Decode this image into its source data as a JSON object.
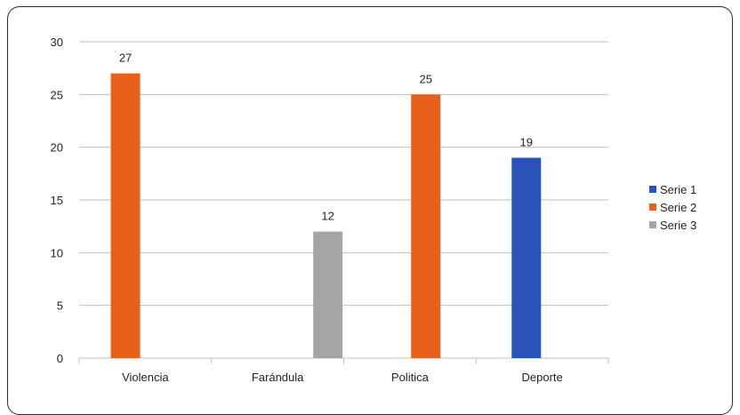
{
  "chart_data": {
    "type": "bar",
    "categories": [
      "Violencia",
      "Farándula",
      "Politica",
      "Deporte"
    ],
    "series": [
      {
        "name": "Serie 1",
        "color": "#2a52b8",
        "values": [
          null,
          null,
          null,
          19
        ]
      },
      {
        "name": "Serie 2",
        "color": "#e8601c",
        "values": [
          27,
          null,
          25,
          null
        ]
      },
      {
        "name": "Serie 3",
        "color": "#a5a5a5",
        "values": [
          null,
          12,
          null,
          null
        ]
      }
    ],
    "ylim": [
      0,
      30
    ],
    "yticks": [
      0,
      5,
      10,
      15,
      20,
      25,
      30
    ],
    "grid": true,
    "legend_position": "right",
    "title": "",
    "xlabel": "",
    "ylabel": ""
  }
}
